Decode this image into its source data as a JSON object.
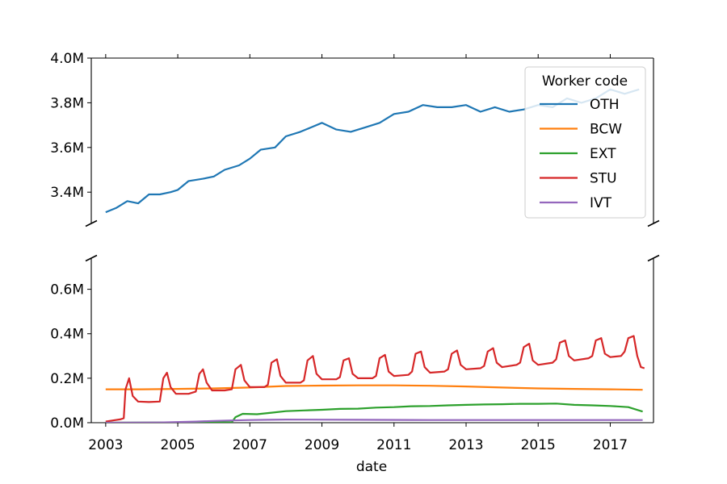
{
  "chart_data": {
    "type": "line",
    "broken_y_axis": true,
    "xlabel": "date",
    "x_ticks": [
      "2003",
      "2005",
      "2007",
      "2009",
      "2011",
      "2013",
      "2015",
      "2017"
    ],
    "xlim": [
      2002.6,
      2018.2
    ],
    "upper_panel": {
      "ylim": [
        3.26,
        4.0
      ],
      "y_ticks": [
        {
          "value": 3.4,
          "label": "3.4M"
        },
        {
          "value": 3.6,
          "label": "3.6M"
        },
        {
          "value": 3.8,
          "label": "3.8M"
        },
        {
          "value": 4.0,
          "label": "4.0M"
        }
      ],
      "series": [
        "OTH"
      ]
    },
    "lower_panel": {
      "ylim": [
        0.0,
        0.74
      ],
      "y_ticks": [
        {
          "value": 0.0,
          "label": "0.0M"
        },
        {
          "value": 0.2,
          "label": "0.2M"
        },
        {
          "value": 0.4,
          "label": "0.4M"
        },
        {
          "value": 0.6,
          "label": "0.6M"
        }
      ],
      "series": [
        "BCW",
        "EXT",
        "STU",
        "IVT"
      ]
    },
    "y_unit": "millions",
    "legend": {
      "title": "Worker code",
      "position": "top-right",
      "entries": [
        "OTH",
        "BCW",
        "EXT",
        "STU",
        "IVT"
      ]
    },
    "series": [
      {
        "name": "OTH",
        "color": "#1f77b4",
        "points": [
          [
            2003.0,
            3.31
          ],
          [
            2003.3,
            3.33
          ],
          [
            2003.6,
            3.36
          ],
          [
            2003.9,
            3.35
          ],
          [
            2004.2,
            3.39
          ],
          [
            2004.5,
            3.39
          ],
          [
            2004.8,
            3.4
          ],
          [
            2005.0,
            3.41
          ],
          [
            2005.3,
            3.45
          ],
          [
            2005.7,
            3.46
          ],
          [
            2006.0,
            3.47
          ],
          [
            2006.3,
            3.5
          ],
          [
            2006.7,
            3.52
          ],
          [
            2007.0,
            3.55
          ],
          [
            2007.3,
            3.59
          ],
          [
            2007.7,
            3.6
          ],
          [
            2008.0,
            3.65
          ],
          [
            2008.4,
            3.67
          ],
          [
            2008.7,
            3.69
          ],
          [
            2009.0,
            3.71
          ],
          [
            2009.4,
            3.68
          ],
          [
            2009.8,
            3.67
          ],
          [
            2010.2,
            3.69
          ],
          [
            2010.6,
            3.71
          ],
          [
            2011.0,
            3.75
          ],
          [
            2011.4,
            3.76
          ],
          [
            2011.8,
            3.79
          ],
          [
            2012.2,
            3.78
          ],
          [
            2012.6,
            3.78
          ],
          [
            2013.0,
            3.79
          ],
          [
            2013.4,
            3.76
          ],
          [
            2013.8,
            3.78
          ],
          [
            2014.2,
            3.76
          ],
          [
            2014.6,
            3.77
          ],
          [
            2015.0,
            3.79
          ],
          [
            2015.4,
            3.78
          ],
          [
            2015.8,
            3.82
          ],
          [
            2016.2,
            3.8
          ],
          [
            2016.6,
            3.82
          ],
          [
            2017.0,
            3.86
          ],
          [
            2017.4,
            3.84
          ],
          [
            2017.8,
            3.86
          ]
        ]
      },
      {
        "name": "BCW",
        "color": "#ff7f0e",
        "points": [
          [
            2003.0,
            0.15
          ],
          [
            2004.0,
            0.15
          ],
          [
            2005.0,
            0.152
          ],
          [
            2006.0,
            0.154
          ],
          [
            2007.0,
            0.158
          ],
          [
            2008.0,
            0.165
          ],
          [
            2009.0,
            0.167
          ],
          [
            2010.0,
            0.168
          ],
          [
            2011.0,
            0.168
          ],
          [
            2012.0,
            0.166
          ],
          [
            2013.0,
            0.163
          ],
          [
            2014.0,
            0.158
          ],
          [
            2015.0,
            0.154
          ],
          [
            2016.0,
            0.152
          ],
          [
            2017.0,
            0.15
          ],
          [
            2017.9,
            0.148
          ]
        ]
      },
      {
        "name": "EXT",
        "color": "#2ca02c",
        "points": [
          [
            2003.0,
            0.0
          ],
          [
            2006.5,
            0.002
          ],
          [
            2006.6,
            0.025
          ],
          [
            2006.8,
            0.04
          ],
          [
            2007.2,
            0.038
          ],
          [
            2007.6,
            0.045
          ],
          [
            2008.0,
            0.052
          ],
          [
            2008.5,
            0.055
          ],
          [
            2009.0,
            0.058
          ],
          [
            2009.5,
            0.062
          ],
          [
            2010.0,
            0.063
          ],
          [
            2010.5,
            0.068
          ],
          [
            2011.0,
            0.07
          ],
          [
            2011.5,
            0.074
          ],
          [
            2012.0,
            0.075
          ],
          [
            2012.5,
            0.078
          ],
          [
            2013.0,
            0.08
          ],
          [
            2013.5,
            0.082
          ],
          [
            2014.0,
            0.083
          ],
          [
            2014.5,
            0.085
          ],
          [
            2015.0,
            0.085
          ],
          [
            2015.5,
            0.086
          ],
          [
            2016.0,
            0.08
          ],
          [
            2016.5,
            0.078
          ],
          [
            2017.0,
            0.075
          ],
          [
            2017.5,
            0.07
          ],
          [
            2017.9,
            0.05
          ]
        ]
      },
      {
        "name": "STU",
        "color": "#d62728",
        "points": [
          [
            2003.0,
            0.005
          ],
          [
            2003.2,
            0.01
          ],
          [
            2003.4,
            0.015
          ],
          [
            2003.5,
            0.02
          ],
          [
            2003.55,
            0.15
          ],
          [
            2003.65,
            0.2
          ],
          [
            2003.75,
            0.12
          ],
          [
            2003.9,
            0.095
          ],
          [
            2004.2,
            0.093
          ],
          [
            2004.5,
            0.095
          ],
          [
            2004.6,
            0.2
          ],
          [
            2004.7,
            0.225
          ],
          [
            2004.8,
            0.16
          ],
          [
            2004.95,
            0.13
          ],
          [
            2005.3,
            0.13
          ],
          [
            2005.5,
            0.14
          ],
          [
            2005.6,
            0.22
          ],
          [
            2005.7,
            0.24
          ],
          [
            2005.8,
            0.18
          ],
          [
            2005.95,
            0.145
          ],
          [
            2006.3,
            0.145
          ],
          [
            2006.5,
            0.15
          ],
          [
            2006.6,
            0.24
          ],
          [
            2006.75,
            0.26
          ],
          [
            2006.85,
            0.19
          ],
          [
            2007.0,
            0.16
          ],
          [
            2007.4,
            0.16
          ],
          [
            2007.5,
            0.17
          ],
          [
            2007.6,
            0.27
          ],
          [
            2007.75,
            0.285
          ],
          [
            2007.85,
            0.21
          ],
          [
            2008.0,
            0.18
          ],
          [
            2008.4,
            0.18
          ],
          [
            2008.5,
            0.19
          ],
          [
            2008.6,
            0.28
          ],
          [
            2008.75,
            0.3
          ],
          [
            2008.85,
            0.22
          ],
          [
            2009.0,
            0.195
          ],
          [
            2009.4,
            0.195
          ],
          [
            2009.5,
            0.205
          ],
          [
            2009.6,
            0.28
          ],
          [
            2009.75,
            0.29
          ],
          [
            2009.85,
            0.22
          ],
          [
            2010.0,
            0.2
          ],
          [
            2010.4,
            0.2
          ],
          [
            2010.5,
            0.21
          ],
          [
            2010.6,
            0.29
          ],
          [
            2010.75,
            0.305
          ],
          [
            2010.85,
            0.23
          ],
          [
            2011.0,
            0.21
          ],
          [
            2011.4,
            0.215
          ],
          [
            2011.5,
            0.23
          ],
          [
            2011.6,
            0.31
          ],
          [
            2011.75,
            0.32
          ],
          [
            2011.85,
            0.25
          ],
          [
            2012.0,
            0.225
          ],
          [
            2012.4,
            0.23
          ],
          [
            2012.5,
            0.24
          ],
          [
            2012.6,
            0.31
          ],
          [
            2012.75,
            0.325
          ],
          [
            2012.85,
            0.26
          ],
          [
            2013.0,
            0.24
          ],
          [
            2013.4,
            0.245
          ],
          [
            2013.5,
            0.255
          ],
          [
            2013.6,
            0.32
          ],
          [
            2013.75,
            0.335
          ],
          [
            2013.85,
            0.27
          ],
          [
            2014.0,
            0.25
          ],
          [
            2014.4,
            0.26
          ],
          [
            2014.5,
            0.27
          ],
          [
            2014.6,
            0.34
          ],
          [
            2014.75,
            0.355
          ],
          [
            2014.85,
            0.28
          ],
          [
            2015.0,
            0.26
          ],
          [
            2015.4,
            0.27
          ],
          [
            2015.5,
            0.285
          ],
          [
            2015.6,
            0.36
          ],
          [
            2015.75,
            0.37
          ],
          [
            2015.85,
            0.3
          ],
          [
            2016.0,
            0.28
          ],
          [
            2016.4,
            0.29
          ],
          [
            2016.5,
            0.3
          ],
          [
            2016.6,
            0.37
          ],
          [
            2016.75,
            0.38
          ],
          [
            2016.85,
            0.31
          ],
          [
            2017.0,
            0.295
          ],
          [
            2017.3,
            0.3
          ],
          [
            2017.4,
            0.32
          ],
          [
            2017.5,
            0.38
          ],
          [
            2017.65,
            0.39
          ],
          [
            2017.75,
            0.3
          ],
          [
            2017.85,
            0.25
          ],
          [
            2017.95,
            0.245
          ]
        ]
      },
      {
        "name": "IVT",
        "color": "#9467bd",
        "points": [
          [
            2003.0,
            0.0
          ],
          [
            2004.5,
            0.001
          ],
          [
            2005.5,
            0.005
          ],
          [
            2006.0,
            0.008
          ],
          [
            2006.5,
            0.01
          ],
          [
            2007.0,
            0.012
          ],
          [
            2007.5,
            0.013
          ],
          [
            2008.0,
            0.014
          ],
          [
            2010.0,
            0.013
          ],
          [
            2012.0,
            0.012
          ],
          [
            2014.0,
            0.012
          ],
          [
            2016.0,
            0.012
          ],
          [
            2017.9,
            0.012
          ]
        ]
      }
    ]
  }
}
